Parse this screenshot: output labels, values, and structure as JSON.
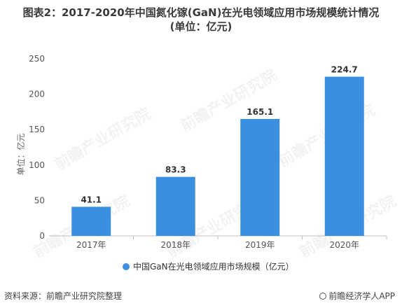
{
  "header": {
    "title_line1": "图表2：2017-2020年中国氮化镓(GaN)在光电领域应用市场规模统计情况",
    "title_line2": "(单位：亿元)"
  },
  "footer": {
    "source": "资料来源：前瞻产业研究院整理",
    "brand": "前瞻经济学人APP"
  },
  "watermark": "前瞻产业研究院",
  "chart_data": {
    "type": "bar",
    "categories": [
      "2017年",
      "2018年",
      "2019年",
      "2020年"
    ],
    "series": [
      {
        "name": "中国GaN在光电领域应用市场规模（亿元）",
        "values": [
          41.1,
          83.3,
          165.1,
          224.7
        ],
        "color": "#3b8fe0"
      }
    ],
    "ylabel": "单位：亿元",
    "xlabel": "",
    "ylim": [
      0,
      250
    ],
    "yticks": [
      0,
      50,
      100,
      150,
      200,
      250
    ],
    "legend": "bottom",
    "grid": false
  }
}
